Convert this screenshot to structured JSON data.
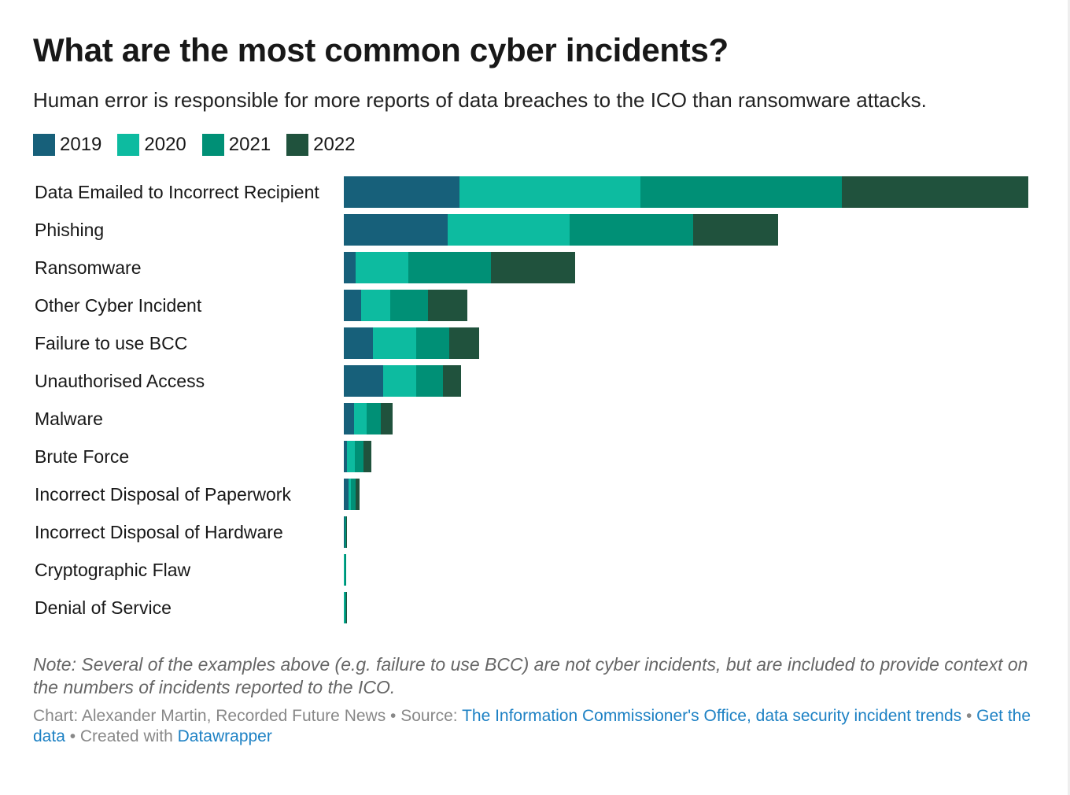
{
  "title": "What are the most common cyber incidents?",
  "subtitle": "Human error is responsible for more reports of data breaches to the ICO than ransomware attacks.",
  "note": "Note: Several of the examples above (e.g. failure to use BCC) are not cyber incidents, but are included to provide context on the numbers of incidents reported to the ICO.",
  "footer": {
    "chart_prefix": "Chart: Alexander Martin, Recorded Future News",
    "sep1": " • Source: ",
    "source_link": "The Information Commissioner's Office, data security incident trends",
    "sep2": " • ",
    "get_data": "Get the data",
    "sep3": " • Created with ",
    "datawrapper": "Datawrapper"
  },
  "chart_data": {
    "type": "bar",
    "stacked": true,
    "orientation": "horizontal",
    "value_axis_shown": false,
    "grid": false,
    "legend_placement": "top-left",
    "note_on_values": "relative values estimated from bar lengths; no axis printed",
    "categories": [
      "Data Emailed to Incorrect Recipient",
      "Phishing",
      "Ransomware",
      "Other Cyber Incident",
      "Failure to use BCC",
      "Unauthorised Access",
      "Malware",
      "Brute Force",
      "Incorrect Disposal of Paperwork",
      "Incorrect Disposal of Hardware",
      "Cryptographic Flaw",
      "Denial of Service"
    ],
    "series": [
      {
        "name": "2019",
        "color": "#17607a",
        "values": [
          147,
          132,
          15,
          22,
          37,
          50,
          13,
          4,
          6,
          1,
          0,
          0
        ]
      },
      {
        "name": "2020",
        "color": "#0dbba0",
        "values": [
          230,
          155,
          67,
          37,
          55,
          42,
          16,
          10,
          3,
          0,
          1,
          1
        ]
      },
      {
        "name": "2021",
        "color": "#009076",
        "values": [
          256,
          157,
          105,
          48,
          42,
          34,
          18,
          11,
          6,
          2,
          2,
          2
        ]
      },
      {
        "name": "2022",
        "color": "#20523d",
        "values": [
          237,
          108,
          107,
          50,
          38,
          23,
          15,
          10,
          5,
          1,
          0,
          1
        ]
      }
    ]
  }
}
